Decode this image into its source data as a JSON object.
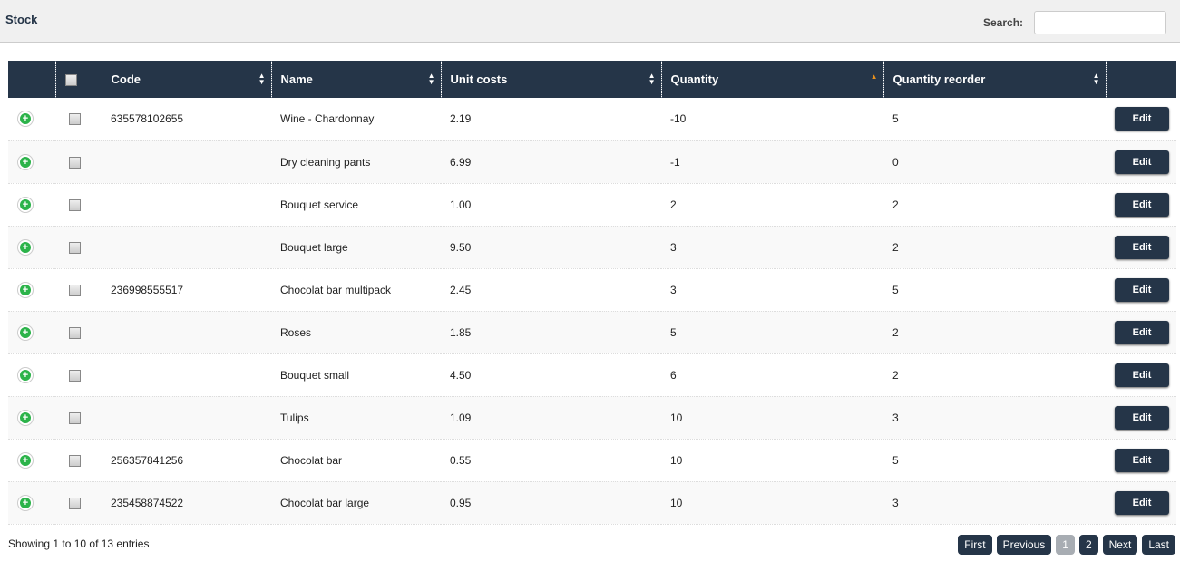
{
  "header": {
    "title": "Stock",
    "search_label": "Search:",
    "search_value": ""
  },
  "table": {
    "columns": [
      "",
      "",
      "Code",
      "Name",
      "Unit costs",
      "Quantity",
      "Quantity reorder",
      ""
    ],
    "sorted_column": "Quantity",
    "sort_direction": "ascending",
    "edit_label": "Edit",
    "rows": [
      {
        "code": "635578102655",
        "name": "Wine - Chardonnay",
        "unit_cost": "2.19",
        "quantity": "-10",
        "reorder": "5"
      },
      {
        "code": "",
        "name": "Dry cleaning pants",
        "unit_cost": "6.99",
        "quantity": "-1",
        "reorder": "0"
      },
      {
        "code": "",
        "name": "Bouquet service",
        "unit_cost": "1.00",
        "quantity": "2",
        "reorder": "2"
      },
      {
        "code": "",
        "name": "Bouquet large",
        "unit_cost": "9.50",
        "quantity": "3",
        "reorder": "2"
      },
      {
        "code": "236998555517",
        "name": "Chocolat bar multipack",
        "unit_cost": "2.45",
        "quantity": "3",
        "reorder": "5"
      },
      {
        "code": "",
        "name": "Roses",
        "unit_cost": "1.85",
        "quantity": "5",
        "reorder": "2"
      },
      {
        "code": "",
        "name": "Bouquet small",
        "unit_cost": "4.50",
        "quantity": "6",
        "reorder": "2"
      },
      {
        "code": "",
        "name": "Tulips",
        "unit_cost": "1.09",
        "quantity": "10",
        "reorder": "3"
      },
      {
        "code": "256357841256",
        "name": "Chocolat bar",
        "unit_cost": "0.55",
        "quantity": "10",
        "reorder": "5"
      },
      {
        "code": "235458874522",
        "name": "Chocolat bar large",
        "unit_cost": "0.95",
        "quantity": "10",
        "reorder": "3"
      }
    ]
  },
  "footer": {
    "info": "Showing 1 to 10 of 13 entries",
    "pages": [
      "First",
      "Previous",
      "1",
      "2",
      "Next",
      "Last"
    ],
    "current_page": "1"
  },
  "colors": {
    "header_bg": "#253548",
    "accent_sort": "#e8901c",
    "add_icon": "#2cb34a"
  }
}
